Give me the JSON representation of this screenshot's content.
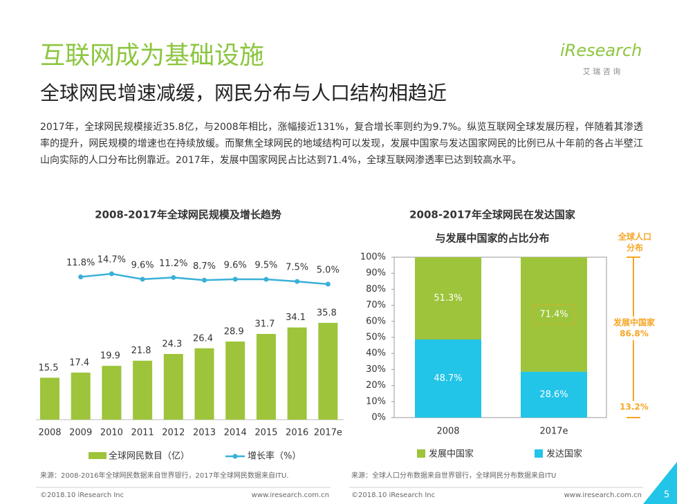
{
  "header": {
    "title": "互联网成为基础设施",
    "subtitle": "全球网民增速减缓，网民分布与人口结构相趋近",
    "logo": "iResearch",
    "logo_sub": "艾 瑞 咨 询"
  },
  "paragraph": "2017年，全球网民规模接近35.8亿，与2008年相比，涨幅接近131%，复合增长率则约为9.7%。纵览互联网全球发展历程，伴随着其渗透率的提升，网民规模的增速也在持续放缓。而聚焦全球网民的地域结构可以发现，发展中国家与发达国家网民的比例已从十年前的各占半壁江山向实际的人口分布比例靠近。2017年，发展中国家网民占比达到71.4%，全球互联网渗透率已达到较高水平。",
  "chart_data": [
    {
      "type": "bar_line",
      "title": "2008-2017年全球网民规模及增长趋势",
      "categories": [
        "2008",
        "2009",
        "2010",
        "2011",
        "2012",
        "2013",
        "2014",
        "2015",
        "2016",
        "2017e"
      ],
      "series": [
        {
          "name": "全球网民数目（亿）",
          "color": "#9dc43a",
          "values": [
            15.5,
            17.4,
            19.9,
            21.8,
            24.3,
            26.4,
            28.9,
            31.7,
            34.1,
            35.8
          ]
        },
        {
          "name": "增长率（%）",
          "color": "#3ab0d8",
          "axis": "y2",
          "values": [
            null,
            11.8,
            14.7,
            9.6,
            11.2,
            8.7,
            9.6,
            9.5,
            7.5,
            5.0
          ],
          "value_labels": [
            null,
            "11.8%",
            "14.7%",
            "9.6%",
            "11.2%",
            "8.7%",
            "9.6%",
            "9.5%",
            "7.5%",
            "5.0%"
          ]
        }
      ],
      "source": "来源：2008-2016年全球网民数据来自世界银行，2017年全球网民数据来自ITU."
    },
    {
      "type": "stacked_bar",
      "title": [
        "2008-2017年全球网民在发达国家",
        "与发展中国家的占比分布"
      ],
      "categories": [
        "2008",
        "2017e"
      ],
      "series": [
        {
          "name": "发展中国家",
          "color": "#9dc43a",
          "values": [
            51.3,
            71.4
          ],
          "value_labels": [
            "51.3%",
            "71.4%"
          ]
        },
        {
          "name": "发达国家",
          "color": "#22c4e8",
          "values": [
            48.7,
            28.6
          ],
          "value_labels": [
            "48.7%",
            "28.6%"
          ]
        }
      ],
      "ylim": [
        0,
        100
      ],
      "yticks": [
        {
          "value": 0,
          "label": "0%"
        },
        {
          "value": 10,
          "label": "10%"
        },
        {
          "value": 20,
          "label": "20%"
        },
        {
          "value": 30,
          "label": "30%"
        },
        {
          "value": 40,
          "label": "40%"
        },
        {
          "value": 50,
          "label": "50%"
        },
        {
          "value": 60,
          "label": "60%"
        },
        {
          "value": 70,
          "label": "70%"
        },
        {
          "value": 80,
          "label": "80%"
        },
        {
          "value": 90,
          "label": "90%"
        },
        {
          "value": 100,
          "label": "100%"
        }
      ],
      "source": "来源：全球人口分布数据来自世界银行，全球网民分布数据来自ITU"
    }
  ],
  "side_annotation": {
    "title": [
      "全球人口",
      "分布"
    ],
    "developing": [
      "发展中国家",
      "86.8%"
    ],
    "developed": "13.2%"
  },
  "footer": {
    "copyright_left": "©2018.10 iResearch Inc",
    "site_left": "www.iresearch.com.cn",
    "copyright_right": "©2018.10 iResearch Inc",
    "site_right": "www.iresearch.com.cn",
    "page": "5"
  }
}
